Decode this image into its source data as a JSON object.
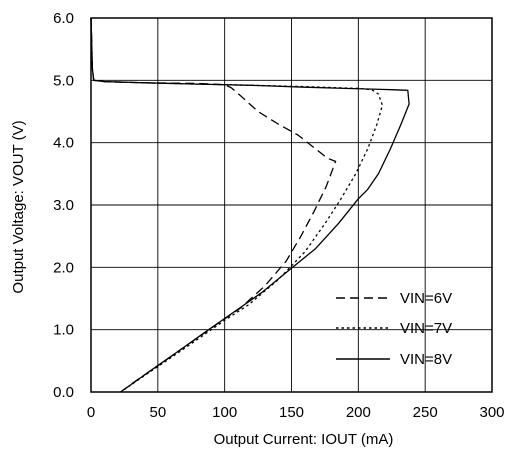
{
  "chart_data": {
    "type": "line",
    "xlabel": "Output Current: IOUT (mA)",
    "ylabel": "Output Voltage: VOUT (V)",
    "xlim": [
      0,
      300
    ],
    "ylim": [
      0,
      6
    ],
    "xticks": [
      0,
      50,
      100,
      150,
      200,
      250,
      300
    ],
    "xtick_labels": [
      "0",
      "50",
      "100",
      "150",
      "200",
      "250",
      "300"
    ],
    "yticks": [
      0,
      1,
      2,
      3,
      4,
      5,
      6
    ],
    "ytick_labels": [
      "0.0",
      "1.0",
      "2.0",
      "3.0",
      "4.0",
      "5.0",
      "6.0"
    ],
    "grid": true,
    "legend_position": "bottom-right",
    "series": [
      {
        "name": "VIN=6V",
        "style": "dashed",
        "color": "#000000",
        "points": [
          [
            0,
            6.0
          ],
          [
            0.5,
            5.6
          ],
          [
            1,
            5.2
          ],
          [
            2,
            5.0
          ],
          [
            10,
            4.98
          ],
          [
            40,
            4.96
          ],
          [
            80,
            4.95
          ],
          [
            100,
            4.93
          ],
          [
            105,
            4.88
          ],
          [
            112,
            4.75
          ],
          [
            125,
            4.5
          ],
          [
            140,
            4.3
          ],
          [
            155,
            4.12
          ],
          [
            168,
            3.9
          ],
          [
            177,
            3.75
          ],
          [
            183,
            3.7
          ],
          [
            176,
            3.3
          ],
          [
            167,
            2.9
          ],
          [
            157,
            2.5
          ],
          [
            146,
            2.1
          ],
          [
            130,
            1.7
          ],
          [
            112,
            1.35
          ],
          [
            95,
            1.1
          ],
          [
            75,
            0.8
          ],
          [
            52,
            0.45
          ],
          [
            35,
            0.2
          ],
          [
            24,
            0.03
          ]
        ]
      },
      {
        "name": "VIN=7V",
        "style": "dotted",
        "color": "#000000",
        "points": [
          [
            0,
            6.0
          ],
          [
            0.5,
            5.6
          ],
          [
            1,
            5.2
          ],
          [
            2,
            5.0
          ],
          [
            10,
            4.98
          ],
          [
            40,
            4.96
          ],
          [
            80,
            4.94
          ],
          [
            120,
            4.92
          ],
          [
            160,
            4.9
          ],
          [
            185,
            4.88
          ],
          [
            200,
            4.87
          ],
          [
            210,
            4.85
          ],
          [
            215,
            4.78
          ],
          [
            218,
            4.6
          ],
          [
            214,
            4.3
          ],
          [
            207,
            3.9
          ],
          [
            198,
            3.5
          ],
          [
            187,
            3.1
          ],
          [
            175,
            2.7
          ],
          [
            160,
            2.25
          ],
          [
            140,
            1.8
          ],
          [
            118,
            1.4
          ],
          [
            100,
            1.15
          ],
          [
            78,
            0.82
          ],
          [
            55,
            0.48
          ],
          [
            37,
            0.22
          ],
          [
            25,
            0.04
          ]
        ]
      },
      {
        "name": "VIN=8V",
        "style": "solid",
        "color": "#000000",
        "points": [
          [
            0,
            6.0
          ],
          [
            0.5,
            5.6
          ],
          [
            1,
            5.2
          ],
          [
            2,
            5.0
          ],
          [
            10,
            4.98
          ],
          [
            40,
            4.96
          ],
          [
            80,
            4.94
          ],
          [
            120,
            4.92
          ],
          [
            160,
            4.89
          ],
          [
            190,
            4.87
          ],
          [
            210,
            4.86
          ],
          [
            225,
            4.85
          ],
          [
            237,
            4.84
          ],
          [
            238,
            4.62
          ],
          [
            232,
            4.3
          ],
          [
            224,
            3.9
          ],
          [
            215,
            3.5
          ],
          [
            207,
            3.25
          ],
          [
            200,
            3.1
          ],
          [
            185,
            2.7
          ],
          [
            168,
            2.3
          ],
          [
            148,
            1.95
          ],
          [
            128,
            1.6
          ],
          [
            108,
            1.3
          ],
          [
            88,
            1.0
          ],
          [
            65,
            0.65
          ],
          [
            45,
            0.35
          ],
          [
            30,
            0.12
          ],
          [
            22,
            0.0
          ]
        ]
      }
    ]
  }
}
